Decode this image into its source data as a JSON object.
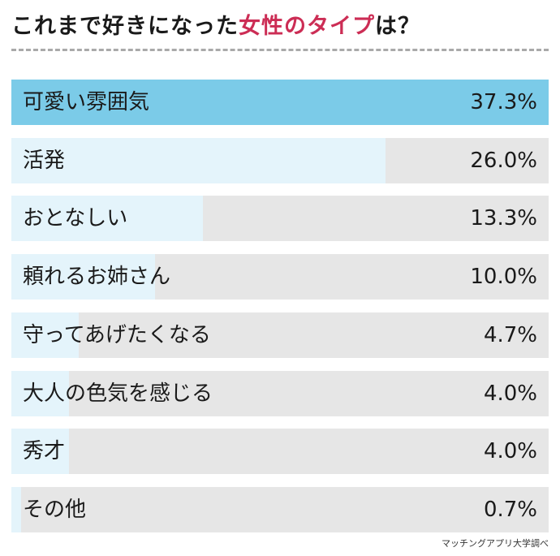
{
  "title": {
    "prefix": "これまで好きになった",
    "highlight": "女性のタイプ",
    "suffix": "は？"
  },
  "colors": {
    "highlight": "#cc2d55",
    "top_bar": "#7bcbe8",
    "bar_fill": "#e4f4fb",
    "track": "#e6e6e6"
  },
  "chart_data": {
    "type": "bar",
    "orientation": "horizontal",
    "title": "これまで好きになった女性のタイプは？",
    "categories": [
      "可愛い雰囲気",
      "活発",
      "おとなしい",
      "頼れるお姉さん",
      "守ってあげたくなる",
      "大人の色気を感じる",
      "秀才",
      "その他"
    ],
    "values": [
      37.3,
      26.0,
      13.3,
      10.0,
      4.7,
      4.0,
      4.0,
      0.7
    ],
    "value_labels": [
      "37.3%",
      "26.0%",
      "13.3%",
      "10.0%",
      "4.7%",
      "4.0%",
      "4.0%",
      "0.7%"
    ],
    "unit": "%",
    "xlim": [
      0,
      37.3
    ],
    "grid": false,
    "legend": "none"
  },
  "source": "マッチングアプリ大学調べ"
}
